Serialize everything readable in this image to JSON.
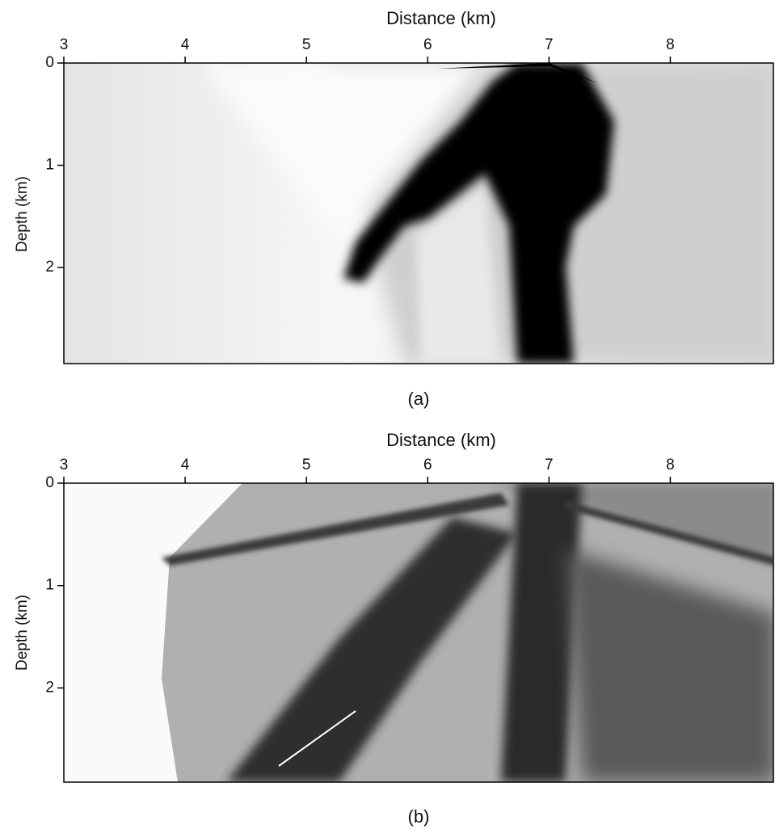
{
  "chart_data": [
    {
      "type": "image",
      "xlabel": "Distance (km)",
      "ylabel": "Depth (km)",
      "caption": "(a)",
      "xlim": [
        3,
        8.85
      ],
      "xticks": [
        3,
        4,
        5,
        6,
        7,
        8
      ],
      "ylim": [
        0,
        2.94
      ],
      "yticks": [
        0,
        1,
        2
      ]
    },
    {
      "type": "image",
      "xlabel": "Distance (km)",
      "ylabel": "Depth (km)",
      "caption": "(b)",
      "xlim": [
        3,
        8.85
      ],
      "xticks": [
        3,
        4,
        5,
        6,
        7,
        8
      ],
      "ylim": [
        0,
        2.92
      ],
      "yticks": [
        0,
        1,
        2
      ]
    }
  ]
}
